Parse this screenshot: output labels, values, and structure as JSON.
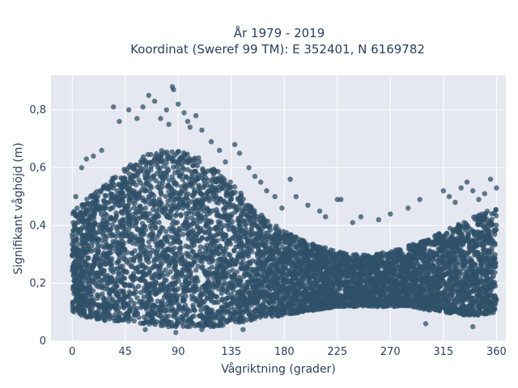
{
  "chart_data": {
    "type": "scatter",
    "title_line1": "År 1979 - 2019",
    "title_line2": "Koordinat (Sweref 99 TM): E 352401, N 6169782",
    "xlabel": "Vågriktning (grader)",
    "ylabel": "Signifikant våghöjd (m)",
    "xlim": [
      -18,
      368
    ],
    "ylim": [
      0,
      0.92
    ],
    "xticks": [
      0,
      45,
      90,
      135,
      180,
      225,
      270,
      315,
      360
    ],
    "yticks": [
      0,
      0.2,
      0.4,
      0.6,
      0.8
    ],
    "ytick_labels": [
      "0",
      "0,2",
      "0,4",
      "0,6",
      "0,8"
    ],
    "grid": true,
    "marker_color": "#2f5068",
    "plot_bg": "#e5e8f0",
    "envelope": {
      "x": [
        0,
        15,
        30,
        45,
        60,
        75,
        90,
        105,
        120,
        135,
        150,
        165,
        180,
        195,
        210,
        225,
        240,
        255,
        270,
        285,
        300,
        315,
        330,
        345,
        360
      ],
      "lower": [
        0.1,
        0.08,
        0.07,
        0.07,
        0.06,
        0.05,
        0.05,
        0.05,
        0.05,
        0.06,
        0.07,
        0.08,
        0.09,
        0.1,
        0.11,
        0.12,
        0.12,
        0.12,
        0.12,
        0.12,
        0.11,
        0.1,
        0.09,
        0.09,
        0.1
      ],
      "upper": [
        0.45,
        0.5,
        0.56,
        0.6,
        0.64,
        0.66,
        0.66,
        0.64,
        0.6,
        0.55,
        0.48,
        0.42,
        0.38,
        0.35,
        0.33,
        0.31,
        0.3,
        0.3,
        0.31,
        0.33,
        0.35,
        0.38,
        0.41,
        0.44,
        0.46
      ]
    },
    "outliers": [
      [
        3,
        0.5
      ],
      [
        8,
        0.6
      ],
      [
        12,
        0.63
      ],
      [
        18,
        0.64
      ],
      [
        25,
        0.66
      ],
      [
        35,
        0.81
      ],
      [
        40,
        0.76
      ],
      [
        48,
        0.8
      ],
      [
        55,
        0.77
      ],
      [
        60,
        0.81
      ],
      [
        65,
        0.85
      ],
      [
        70,
        0.83
      ],
      [
        75,
        0.77
      ],
      [
        80,
        0.8
      ],
      [
        82,
        0.75
      ],
      [
        85,
        0.88
      ],
      [
        86,
        0.87
      ],
      [
        90,
        0.82
      ],
      [
        95,
        0.79
      ],
      [
        98,
        0.76
      ],
      [
        100,
        0.74
      ],
      [
        105,
        0.78
      ],
      [
        110,
        0.73
      ],
      [
        118,
        0.69
      ],
      [
        125,
        0.66
      ],
      [
        130,
        0.62
      ],
      [
        138,
        0.68
      ],
      [
        142,
        0.65
      ],
      [
        150,
        0.6
      ],
      [
        155,
        0.57
      ],
      [
        160,
        0.55
      ],
      [
        165,
        0.52
      ],
      [
        172,
        0.5
      ],
      [
        178,
        0.46
      ],
      [
        185,
        0.56
      ],
      [
        190,
        0.5
      ],
      [
        200,
        0.47
      ],
      [
        210,
        0.45
      ],
      [
        215,
        0.43
      ],
      [
        225,
        0.49
      ],
      [
        228,
        0.49
      ],
      [
        238,
        0.41
      ],
      [
        245,
        0.43
      ],
      [
        260,
        0.42
      ],
      [
        270,
        0.44
      ],
      [
        285,
        0.46
      ],
      [
        295,
        0.49
      ],
      [
        315,
        0.52
      ],
      [
        320,
        0.5
      ],
      [
        325,
        0.48
      ],
      [
        330,
        0.53
      ],
      [
        335,
        0.55
      ],
      [
        340,
        0.52
      ],
      [
        345,
        0.49
      ],
      [
        350,
        0.51
      ],
      [
        355,
        0.56
      ],
      [
        360,
        0.53
      ],
      [
        62,
        0.04
      ],
      [
        88,
        0.03
      ],
      [
        110,
        0.04
      ],
      [
        145,
        0.04
      ],
      [
        300,
        0.06
      ],
      [
        340,
        0.05
      ]
    ]
  }
}
